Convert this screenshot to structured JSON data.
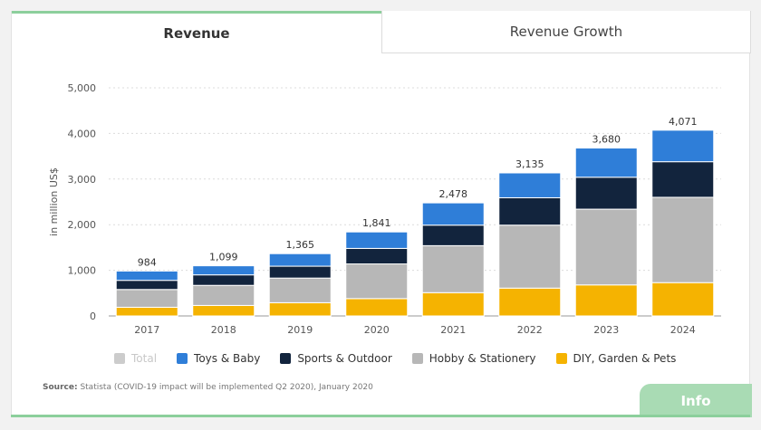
{
  "tabs": {
    "revenue": "Revenue",
    "growth": "Revenue Growth"
  },
  "source": {
    "label": "Source:",
    "text": "Statista (COVID-19 impact will be implemented Q2 2020), January 2020"
  },
  "info_button": "Info",
  "legend": [
    {
      "name": "Total",
      "color": "#cccccc",
      "disabled": true
    },
    {
      "name": "Toys & Baby",
      "color": "#2f7ed8",
      "disabled": false
    },
    {
      "name": "Sports & Outdoor",
      "color": "#12243d",
      "disabled": false
    },
    {
      "name": "Hobby & Stationery",
      "color": "#b7b7b7",
      "disabled": false
    },
    {
      "name": "DIY, Garden & Pets",
      "color": "#f5b301",
      "disabled": false
    }
  ],
  "chart_data": {
    "type": "bar",
    "stacked": true,
    "categories": [
      "2017",
      "2018",
      "2019",
      "2020",
      "2021",
      "2022",
      "2023",
      "2024"
    ],
    "ylabel": "in million US$",
    "ylim": [
      0,
      5000
    ],
    "yticks": [
      0,
      1000,
      2000,
      3000,
      4000,
      5000
    ],
    "ytick_labels": [
      "0",
      "1,000",
      "2,000",
      "3,000",
      "4,000",
      "5,000"
    ],
    "grid": true,
    "series": [
      {
        "name": "DIY, Garden & Pets",
        "color": "#f5b301",
        "values": [
          190,
          230,
          290,
          380,
          510,
          610,
          680,
          730
        ]
      },
      {
        "name": "Hobby & Stationery",
        "color": "#b7b7b7",
        "values": [
          390,
          440,
          540,
          760,
          1030,
          1380,
          1660,
          1870
        ]
      },
      {
        "name": "Sports & Outdoor",
        "color": "#12243d",
        "values": [
          200,
          230,
          260,
          340,
          450,
          600,
          700,
          780
        ]
      },
      {
        "name": "Toys & Baby",
        "color": "#2f7ed8",
        "values": [
          204,
          199,
          275,
          361,
          488,
          545,
          640,
          691
        ]
      }
    ],
    "totals": [
      984,
      1099,
      1365,
      1841,
      2478,
      3135,
      3680,
      4071
    ],
    "total_labels": [
      "984",
      "1,099",
      "1,365",
      "1,841",
      "2,478",
      "3,135",
      "3,680",
      "4,071"
    ]
  }
}
